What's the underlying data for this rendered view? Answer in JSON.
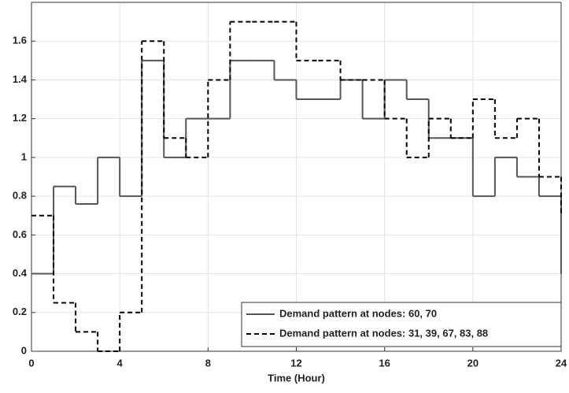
{
  "chart_data": {
    "type": "step",
    "xlabel": "Time (Hour)",
    "x": [
      0,
      1,
      2,
      3,
      4,
      5,
      6,
      7,
      8,
      9,
      10,
      11,
      12,
      13,
      14,
      15,
      16,
      17,
      18,
      19,
      20,
      21,
      22,
      23,
      24
    ],
    "series": [
      {
        "name": "Demand pattern at nodes: 60, 70",
        "color": "#555555",
        "dash": "solid",
        "values": [
          0.4,
          0.85,
          0.76,
          1.0,
          0.8,
          1.5,
          1.0,
          1.2,
          1.2,
          1.5,
          1.5,
          1.4,
          1.3,
          1.3,
          1.4,
          1.2,
          1.4,
          1.3,
          1.1,
          1.1,
          0.8,
          1.0,
          0.9,
          0.8,
          0.4
        ]
      },
      {
        "name": "Demand pattern at nodes: 31, 39, 67, 83, 88",
        "color": "#000000",
        "dash": "dashed",
        "values": [
          0.7,
          0.25,
          0.1,
          0.0,
          0.2,
          1.6,
          1.1,
          1.0,
          1.4,
          1.7,
          1.7,
          1.7,
          1.5,
          1.5,
          1.4,
          1.4,
          1.2,
          1.0,
          1.2,
          1.1,
          1.3,
          1.1,
          1.2,
          0.9,
          0.7
        ]
      }
    ],
    "xlim": [
      0,
      24
    ],
    "xticks": [
      0,
      4,
      8,
      12,
      16,
      20,
      24
    ],
    "ylim": [
      0,
      1.8
    ],
    "yticks": [
      0,
      0.2,
      0.4,
      0.6,
      0.8,
      1,
      1.2,
      1.4,
      1.6
    ],
    "grid": true,
    "legend": "lower right"
  }
}
